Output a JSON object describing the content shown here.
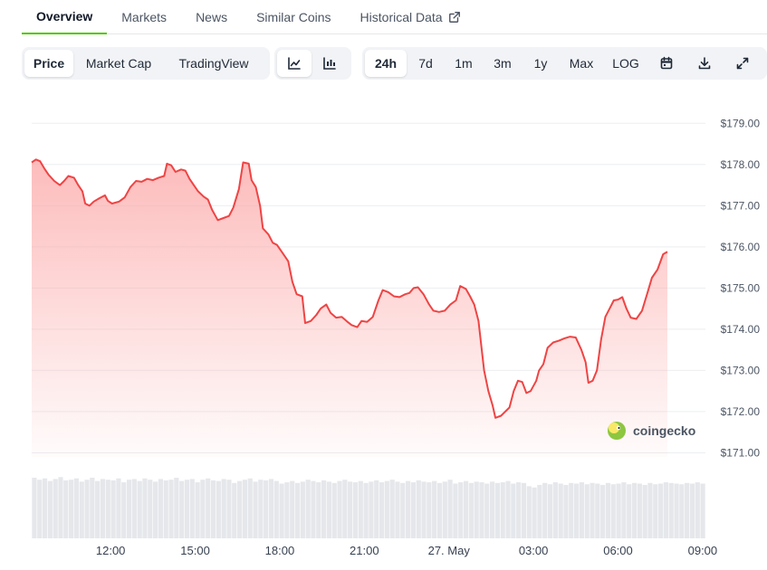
{
  "tabs": [
    {
      "label": "Overview",
      "active": true
    },
    {
      "label": "Markets",
      "active": false
    },
    {
      "label": "News",
      "active": false
    },
    {
      "label": "Similar Coins",
      "active": false
    },
    {
      "label": "Historical Data",
      "active": false,
      "icon": "external-link-icon"
    }
  ],
  "toolbar": {
    "views": [
      {
        "label": "Price",
        "active": true
      },
      {
        "label": "Market Cap",
        "active": false
      },
      {
        "label": "TradingView",
        "active": false
      }
    ],
    "chart_types": [
      {
        "icon": "line-chart-icon",
        "active": true
      },
      {
        "icon": "candlestick-chart-icon",
        "active": false
      }
    ],
    "ranges": [
      {
        "label": "24h",
        "active": true
      },
      {
        "label": "7d",
        "active": false
      },
      {
        "label": "1m",
        "active": false
      },
      {
        "label": "3m",
        "active": false
      },
      {
        "label": "1y",
        "active": false
      },
      {
        "label": "Max",
        "active": false
      },
      {
        "label": "LOG",
        "active": false
      }
    ],
    "actions": [
      {
        "icon": "calendar-icon"
      },
      {
        "icon": "download-icon"
      },
      {
        "icon": "fullscreen-icon"
      }
    ]
  },
  "colors": {
    "accent": "#4bcc00",
    "line": "#ef4444",
    "area_top": "#fca5a5",
    "volume": "#e5e7eb",
    "grid": "#eceef1"
  },
  "chart_data": {
    "type": "area",
    "watermark": "coingecko",
    "y_tick_labels": [
      "$171.00",
      "$172.00",
      "$173.00",
      "$174.00",
      "$175.00",
      "$176.00",
      "$177.00",
      "$178.00",
      "$179.00"
    ],
    "y_ticks": [
      171,
      172,
      173,
      174,
      175,
      176,
      177,
      178,
      179
    ],
    "ylim": [
      170.9,
      179.05
    ],
    "x_ticks": [
      {
        "label": "12:00",
        "t": 2.0
      },
      {
        "label": "15:00",
        "t": 5.0
      },
      {
        "label": "18:00",
        "t": 8.0
      },
      {
        "label": "21:00",
        "t": 11.0
      },
      {
        "label": "27. May",
        "t": 14.0
      },
      {
        "label": "03:00",
        "t": 17.0
      },
      {
        "label": "06:00",
        "t": 20.0
      },
      {
        "label": "09:00",
        "t": 23.0
      }
    ],
    "x_range": [
      -0.8,
      23.1
    ],
    "x_unit": "hours after 10:00",
    "grid": true,
    "series": [
      {
        "points": [
          [
            -0.8,
            178.05
          ],
          [
            -0.65,
            178.12
          ],
          [
            -0.5,
            178.08
          ],
          [
            -0.35,
            177.9
          ],
          [
            -0.2,
            177.75
          ],
          [
            0.0,
            177.6
          ],
          [
            0.2,
            177.5
          ],
          [
            0.35,
            177.6
          ],
          [
            0.5,
            177.72
          ],
          [
            0.7,
            177.68
          ],
          [
            0.85,
            177.5
          ],
          [
            1.0,
            177.35
          ],
          [
            1.1,
            177.05
          ],
          [
            1.25,
            177.0
          ],
          [
            1.4,
            177.1
          ],
          [
            1.6,
            177.18
          ],
          [
            1.8,
            177.25
          ],
          [
            1.9,
            177.12
          ],
          [
            2.05,
            177.05
          ],
          [
            2.3,
            177.1
          ],
          [
            2.5,
            177.2
          ],
          [
            2.7,
            177.45
          ],
          [
            2.9,
            177.6
          ],
          [
            3.1,
            177.58
          ],
          [
            3.3,
            177.65
          ],
          [
            3.5,
            177.62
          ],
          [
            3.7,
            177.68
          ],
          [
            3.9,
            177.72
          ],
          [
            4.0,
            178.02
          ],
          [
            4.15,
            177.98
          ],
          [
            4.3,
            177.82
          ],
          [
            4.5,
            177.88
          ],
          [
            4.65,
            177.85
          ],
          [
            4.8,
            177.65
          ],
          [
            4.95,
            177.5
          ],
          [
            5.1,
            177.35
          ],
          [
            5.3,
            177.22
          ],
          [
            5.45,
            177.15
          ],
          [
            5.6,
            176.9
          ],
          [
            5.8,
            176.65
          ],
          [
            6.0,
            176.7
          ],
          [
            6.2,
            176.75
          ],
          [
            6.35,
            176.95
          ],
          [
            6.55,
            177.4
          ],
          [
            6.7,
            178.05
          ],
          [
            6.9,
            178.02
          ],
          [
            7.0,
            177.62
          ],
          [
            7.15,
            177.45
          ],
          [
            7.3,
            177.0
          ],
          [
            7.4,
            176.45
          ],
          [
            7.6,
            176.3
          ],
          [
            7.75,
            176.1
          ],
          [
            7.9,
            176.05
          ],
          [
            8.1,
            175.85
          ],
          [
            8.3,
            175.65
          ],
          [
            8.45,
            175.15
          ],
          [
            8.6,
            174.85
          ],
          [
            8.8,
            174.8
          ],
          [
            8.9,
            174.15
          ],
          [
            9.1,
            174.2
          ],
          [
            9.3,
            174.35
          ],
          [
            9.45,
            174.5
          ],
          [
            9.65,
            174.6
          ],
          [
            9.8,
            174.4
          ],
          [
            10.0,
            174.28
          ],
          [
            10.2,
            174.3
          ],
          [
            10.4,
            174.18
          ],
          [
            10.55,
            174.1
          ],
          [
            10.75,
            174.05
          ],
          [
            10.9,
            174.2
          ],
          [
            11.1,
            174.18
          ],
          [
            11.3,
            174.3
          ],
          [
            11.5,
            174.7
          ],
          [
            11.65,
            174.95
          ],
          [
            11.85,
            174.9
          ],
          [
            12.05,
            174.8
          ],
          [
            12.25,
            174.78
          ],
          [
            12.45,
            174.85
          ],
          [
            12.6,
            174.88
          ],
          [
            12.75,
            175.0
          ],
          [
            12.9,
            175.02
          ],
          [
            13.1,
            174.85
          ],
          [
            13.3,
            174.6
          ],
          [
            13.45,
            174.45
          ],
          [
            13.65,
            174.42
          ],
          [
            13.85,
            174.45
          ],
          [
            14.05,
            174.6
          ],
          [
            14.25,
            174.7
          ],
          [
            14.4,
            175.05
          ],
          [
            14.6,
            174.98
          ],
          [
            14.75,
            174.8
          ],
          [
            14.9,
            174.6
          ],
          [
            15.05,
            174.2
          ],
          [
            15.25,
            173.0
          ],
          [
            15.4,
            172.5
          ],
          [
            15.55,
            172.15
          ],
          [
            15.65,
            171.85
          ],
          [
            15.85,
            171.9
          ],
          [
            16.0,
            172.0
          ],
          [
            16.15,
            172.1
          ],
          [
            16.3,
            172.5
          ],
          [
            16.45,
            172.75
          ],
          [
            16.6,
            172.72
          ],
          [
            16.75,
            172.45
          ],
          [
            16.9,
            172.5
          ],
          [
            17.1,
            172.75
          ],
          [
            17.2,
            173.0
          ],
          [
            17.35,
            173.15
          ],
          [
            17.5,
            173.55
          ],
          [
            17.7,
            173.68
          ],
          [
            17.9,
            173.72
          ],
          [
            18.1,
            173.78
          ],
          [
            18.3,
            173.82
          ],
          [
            18.5,
            173.8
          ],
          [
            18.7,
            173.5
          ],
          [
            18.85,
            173.2
          ],
          [
            18.95,
            172.7
          ],
          [
            19.1,
            172.75
          ],
          [
            19.25,
            173.0
          ],
          [
            19.4,
            173.75
          ],
          [
            19.55,
            174.3
          ],
          [
            19.7,
            174.5
          ],
          [
            19.85,
            174.7
          ],
          [
            20.0,
            174.72
          ],
          [
            20.15,
            174.78
          ],
          [
            20.3,
            174.5
          ],
          [
            20.45,
            174.28
          ],
          [
            20.65,
            174.25
          ],
          [
            20.85,
            174.45
          ],
          [
            21.05,
            174.9
          ],
          [
            21.2,
            175.25
          ],
          [
            21.4,
            175.45
          ],
          [
            21.6,
            175.82
          ],
          [
            21.75,
            175.88
          ]
        ]
      }
    ],
    "volume": [
      0.93,
      0.9,
      0.92,
      0.88,
      0.91,
      0.94,
      0.89,
      0.9,
      0.92,
      0.87,
      0.9,
      0.93,
      0.88,
      0.91,
      0.9,
      0.89,
      0.92,
      0.86,
      0.9,
      0.91,
      0.88,
      0.92,
      0.9,
      0.87,
      0.91,
      0.89,
      0.9,
      0.93,
      0.88,
      0.9,
      0.91,
      0.86,
      0.9,
      0.92,
      0.89,
      0.88,
      0.91,
      0.9,
      0.85,
      0.88,
      0.9,
      0.92,
      0.87,
      0.9,
      0.89,
      0.91,
      0.88,
      0.84,
      0.86,
      0.88,
      0.85,
      0.87,
      0.9,
      0.88,
      0.86,
      0.89,
      0.87,
      0.85,
      0.88,
      0.9,
      0.87,
      0.86,
      0.88,
      0.85,
      0.87,
      0.89,
      0.86,
      0.88,
      0.9,
      0.87,
      0.85,
      0.88,
      0.86,
      0.89,
      0.87,
      0.86,
      0.88,
      0.85,
      0.87,
      0.9,
      0.84,
      0.86,
      0.88,
      0.85,
      0.87,
      0.86,
      0.84,
      0.87,
      0.85,
      0.86,
      0.88,
      0.84,
      0.86,
      0.85,
      0.8,
      0.78,
      0.82,
      0.85,
      0.83,
      0.86,
      0.84,
      0.82,
      0.85,
      0.84,
      0.86,
      0.83,
      0.85,
      0.84,
      0.82,
      0.85,
      0.83,
      0.84,
      0.86,
      0.83,
      0.85,
      0.84,
      0.82,
      0.85,
      0.83,
      0.84,
      0.86,
      0.85,
      0.84,
      0.83,
      0.85,
      0.84,
      0.86,
      0.84
    ]
  }
}
